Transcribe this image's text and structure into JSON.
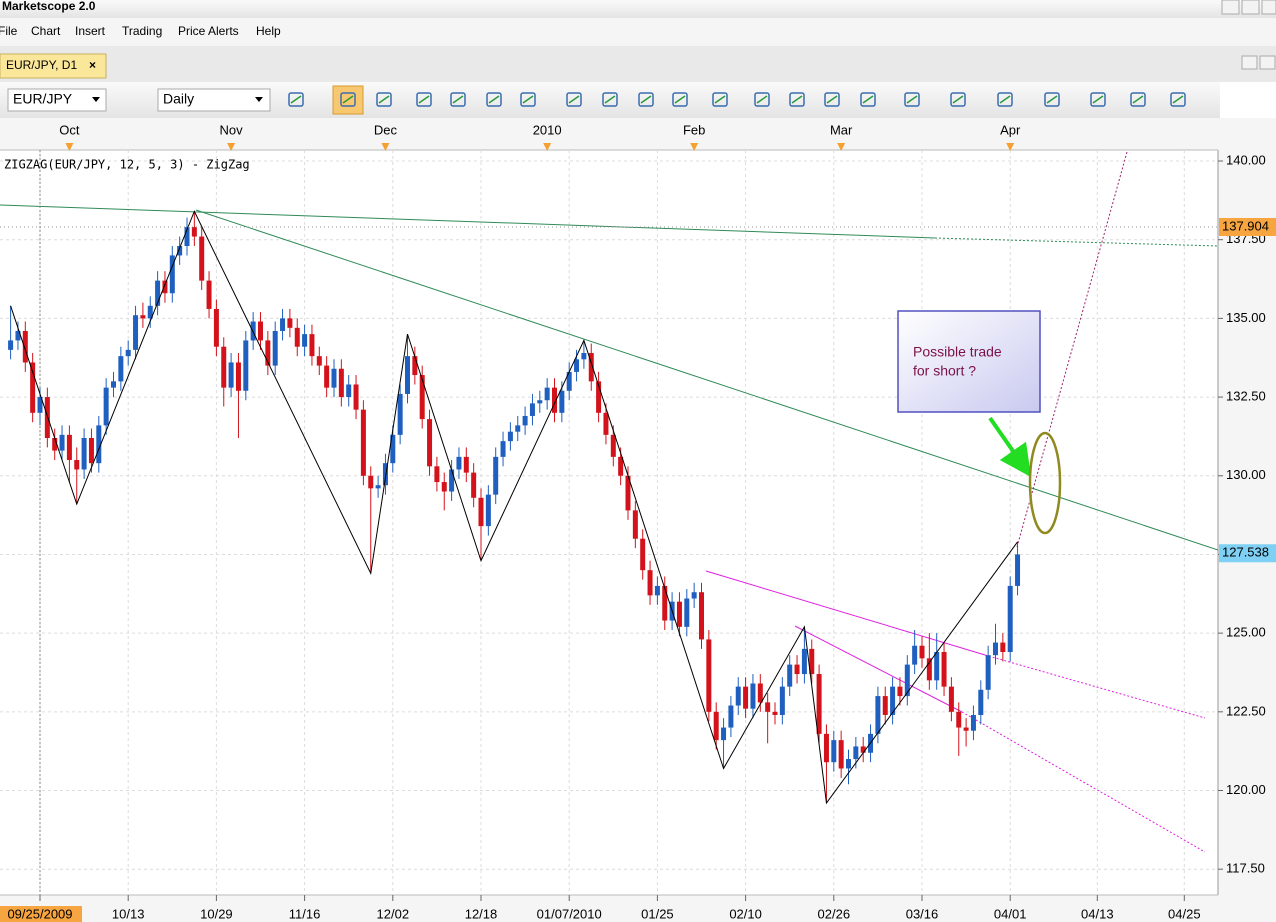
{
  "window": {
    "title": "Marketscope 2.0"
  },
  "menu": [
    "File",
    "Chart",
    "Insert",
    "Trading",
    "Price Alerts",
    "Help"
  ],
  "tab": {
    "label": "EUR/JPY, D1"
  },
  "toolbar": {
    "symbol": "EUR/JPY",
    "timeframe": "Daily"
  },
  "annotation": {
    "lines": [
      "Possible trade",
      "for short ?"
    ]
  },
  "chart_data": {
    "type": "candlestick",
    "title": "ZIGZAG(EUR/JPY, 12, 5, 3) - ZigZag",
    "x": [
      "2009-09-21",
      "2009-09-22",
      "2009-09-23",
      "2009-09-24",
      "2009-09-25",
      "2009-09-28",
      "2009-09-29",
      "2009-09-30",
      "2009-10-01",
      "2009-10-02",
      "2009-10-05",
      "2009-10-06",
      "2009-10-07",
      "2009-10-08",
      "2009-10-09",
      "2009-10-12",
      "2009-10-13",
      "2009-10-14",
      "2009-10-15",
      "2009-10-16",
      "2009-10-19",
      "2009-10-20",
      "2009-10-21",
      "2009-10-22",
      "2009-10-23",
      "2009-10-26",
      "2009-10-27",
      "2009-10-28",
      "2009-10-29",
      "2009-10-30",
      "2009-11-02",
      "2009-11-03",
      "2009-11-04",
      "2009-11-05",
      "2009-11-06",
      "2009-11-09",
      "2009-11-10",
      "2009-11-11",
      "2009-11-12",
      "2009-11-13",
      "2009-11-16",
      "2009-11-17",
      "2009-11-18",
      "2009-11-19",
      "2009-11-20",
      "2009-11-23",
      "2009-11-24",
      "2009-11-25",
      "2009-11-26",
      "2009-11-27",
      "2009-11-30",
      "2009-12-01",
      "2009-12-02",
      "2009-12-03",
      "2009-12-04",
      "2009-12-07",
      "2009-12-08",
      "2009-12-09",
      "2009-12-10",
      "2009-12-11",
      "2009-12-14",
      "2009-12-15",
      "2009-12-16",
      "2009-12-17",
      "2009-12-18",
      "2009-12-21",
      "2009-12-22",
      "2009-12-23",
      "2009-12-24",
      "2009-12-28",
      "2009-12-29",
      "2009-12-30",
      "2009-12-31",
      "2010-01-04",
      "2010-01-05",
      "2010-01-06",
      "2010-01-07",
      "2010-01-08",
      "2010-01-11",
      "2010-01-12",
      "2010-01-13",
      "2010-01-14",
      "2010-01-15",
      "2010-01-18",
      "2010-01-19",
      "2010-01-20",
      "2010-01-21",
      "2010-01-22",
      "2010-01-25",
      "2010-01-26",
      "2010-01-27",
      "2010-01-28",
      "2010-01-29",
      "2010-02-01",
      "2010-02-02",
      "2010-02-03",
      "2010-02-04",
      "2010-02-05",
      "2010-02-08",
      "2010-02-09",
      "2010-02-10",
      "2010-02-11",
      "2010-02-12",
      "2010-02-15",
      "2010-02-16",
      "2010-02-17",
      "2010-02-18",
      "2010-02-19",
      "2010-02-22",
      "2010-02-23",
      "2010-02-24",
      "2010-02-25",
      "2010-02-26",
      "2010-03-01",
      "2010-03-02",
      "2010-03-03",
      "2010-03-04",
      "2010-03-05",
      "2010-03-08",
      "2010-03-09",
      "2010-03-10",
      "2010-03-11",
      "2010-03-12",
      "2010-03-15",
      "2010-03-16",
      "2010-03-17",
      "2010-03-18",
      "2010-03-19",
      "2010-03-22",
      "2010-03-23",
      "2010-03-24",
      "2010-03-25",
      "2010-03-26",
      "2010-03-29",
      "2010-03-30",
      "2010-03-31",
      "2010-04-01",
      "2010-04-02"
    ],
    "open": [
      134.0,
      134.3,
      134.6,
      133.6,
      132.0,
      132.5,
      131.2,
      130.8,
      131.3,
      130.5,
      130.2,
      131.2,
      130.4,
      131.6,
      132.8,
      133.0,
      133.8,
      134.0,
      135.1,
      135.0,
      135.4,
      136.2,
      135.8,
      137.0,
      137.3,
      137.9,
      137.6,
      136.2,
      135.3,
      134.1,
      132.8,
      133.6,
      132.7,
      134.3,
      134.9,
      134.3,
      133.5,
      134.6,
      135.0,
      134.7,
      134.1,
      134.5,
      133.8,
      133.5,
      132.8,
      133.4,
      132.5,
      132.9,
      132.1,
      130.0,
      129.6,
      129.7,
      130.4,
      131.3,
      132.6,
      133.8,
      133.2,
      131.8,
      130.3,
      129.8,
      129.5,
      130.2,
      130.6,
      130.1,
      129.3,
      128.4,
      129.4,
      130.6,
      131.1,
      131.4,
      131.6,
      131.9,
      132.3,
      132.4,
      132.8,
      132.0,
      132.7,
      133.3,
      133.7,
      133.9,
      133.0,
      132.0,
      131.3,
      130.6,
      130.0,
      128.9,
      128.0,
      127.0,
      126.2,
      126.5,
      125.4,
      126.0,
      125.2,
      126.1,
      126.3,
      124.8,
      122.5,
      121.6,
      122.0,
      122.7,
      123.3,
      122.6,
      123.4,
      122.8,
      122.5,
      122.4,
      123.3,
      124.0,
      123.7,
      124.5,
      123.7,
      121.8,
      120.9,
      121.6,
      120.7,
      121.0,
      121.4,
      121.2,
      121.8,
      123.0,
      122.4,
      123.3,
      123.0,
      124.0,
      124.6,
      124.2,
      123.5,
      124.4,
      123.3,
      122.5,
      122.0,
      121.9,
      122.4,
      123.2,
      124.3,
      124.7,
      124.4,
      126.5
    ],
    "high": [
      135.4,
      134.9,
      134.9,
      133.9,
      132.8,
      132.8,
      131.5,
      131.6,
      131.6,
      130.9,
      131.5,
      131.5,
      131.9,
      133.1,
      133.3,
      134.1,
      134.3,
      135.4,
      135.5,
      135.7,
      136.5,
      136.5,
      137.3,
      137.6,
      138.2,
      138.4,
      137.9,
      136.5,
      135.6,
      134.4,
      133.9,
      133.9,
      134.6,
      135.2,
      135.2,
      134.6,
      134.9,
      135.3,
      135.3,
      135.0,
      134.8,
      134.8,
      134.1,
      133.8,
      133.7,
      133.7,
      133.2,
      133.2,
      132.4,
      130.3,
      130.0,
      130.7,
      131.6,
      132.9,
      134.5,
      134.1,
      133.5,
      132.1,
      130.6,
      130.1,
      130.5,
      130.9,
      130.9,
      130.4,
      129.6,
      129.7,
      130.9,
      131.4,
      131.7,
      131.9,
      132.2,
      132.6,
      132.7,
      133.1,
      133.1,
      133.0,
      133.6,
      134.0,
      134.3,
      134.2,
      133.3,
      132.3,
      131.6,
      130.9,
      130.3,
      129.2,
      128.3,
      127.3,
      126.8,
      126.8,
      126.3,
      126.3,
      126.4,
      126.6,
      126.6,
      125.1,
      122.8,
      122.3,
      123.0,
      123.6,
      123.6,
      123.7,
      123.7,
      123.1,
      122.8,
      123.6,
      124.3,
      124.3,
      125.2,
      124.8,
      124.0,
      122.1,
      121.9,
      121.9,
      121.3,
      121.7,
      121.7,
      122.1,
      123.3,
      123.3,
      123.6,
      123.6,
      124.3,
      125.1,
      124.9,
      125.0,
      125.0,
      124.7,
      123.6,
      122.8,
      122.3,
      122.7,
      123.5,
      124.6,
      125.3,
      125.0,
      126.8,
      127.9
    ],
    "low": [
      133.7,
      134.0,
      133.3,
      131.7,
      131.6,
      130.9,
      130.5,
      130.5,
      129.8,
      129.1,
      129.9,
      130.1,
      130.1,
      131.3,
      132.5,
      132.7,
      133.5,
      133.7,
      134.7,
      134.7,
      135.1,
      135.5,
      135.5,
      136.7,
      137.0,
      137.3,
      135.9,
      135.0,
      133.8,
      132.2,
      132.5,
      131.2,
      132.4,
      134.0,
      134.0,
      133.2,
      133.2,
      134.3,
      134.4,
      133.8,
      133.8,
      133.5,
      133.2,
      132.5,
      132.5,
      132.2,
      132.2,
      131.8,
      129.7,
      126.9,
      129.3,
      129.4,
      130.1,
      131.0,
      132.3,
      132.9,
      131.5,
      130.0,
      129.5,
      128.9,
      129.2,
      129.9,
      129.8,
      129.0,
      127.3,
      128.1,
      129.1,
      130.3,
      130.8,
      131.1,
      131.3,
      131.6,
      132.0,
      132.1,
      131.7,
      131.7,
      132.4,
      133.0,
      133.4,
      132.7,
      131.7,
      131.0,
      130.3,
      129.7,
      128.6,
      127.7,
      126.7,
      125.9,
      125.9,
      125.1,
      125.1,
      124.9,
      124.9,
      125.8,
      124.5,
      122.2,
      121.3,
      120.7,
      121.7,
      122.4,
      122.3,
      122.3,
      122.5,
      121.5,
      122.1,
      122.1,
      123.0,
      123.4,
      123.4,
      123.4,
      121.5,
      119.6,
      120.6,
      120.4,
      120.2,
      120.7,
      120.9,
      120.9,
      121.5,
      122.1,
      122.1,
      122.7,
      122.7,
      123.7,
      123.9,
      123.2,
      123.2,
      123.0,
      122.2,
      121.1,
      121.4,
      121.6,
      122.1,
      122.9,
      124.0,
      124.1,
      124.1,
      126.2
    ],
    "close": [
      134.3,
      134.6,
      133.6,
      132.0,
      132.5,
      131.2,
      130.8,
      131.3,
      130.5,
      130.2,
      131.2,
      130.4,
      131.6,
      132.8,
      133.0,
      133.8,
      134.0,
      135.1,
      135.0,
      135.4,
      136.2,
      135.8,
      137.0,
      137.3,
      137.9,
      137.6,
      136.2,
      135.3,
      134.1,
      132.8,
      133.6,
      132.7,
      134.3,
      134.9,
      134.3,
      133.5,
      134.6,
      135.0,
      134.7,
      134.1,
      134.5,
      133.8,
      133.5,
      132.8,
      133.4,
      132.5,
      132.9,
      132.1,
      130.0,
      129.6,
      129.7,
      130.4,
      131.3,
      132.6,
      133.8,
      133.2,
      131.8,
      130.3,
      129.8,
      129.5,
      130.2,
      130.6,
      130.1,
      129.3,
      128.4,
      129.4,
      130.6,
      131.1,
      131.4,
      131.6,
      131.9,
      132.3,
      132.4,
      132.8,
      132.0,
      132.7,
      133.3,
      133.7,
      133.9,
      133.0,
      132.0,
      131.3,
      130.6,
      130.0,
      128.9,
      128.0,
      127.0,
      126.2,
      126.5,
      125.4,
      126.0,
      125.2,
      126.1,
      126.3,
      124.8,
      122.5,
      121.6,
      122.0,
      122.7,
      123.3,
      122.6,
      123.4,
      122.8,
      122.5,
      122.4,
      123.3,
      124.0,
      123.7,
      124.5,
      123.7,
      121.8,
      120.9,
      121.6,
      120.7,
      121.0,
      121.4,
      121.2,
      121.8,
      123.0,
      122.4,
      123.3,
      123.0,
      124.0,
      124.6,
      124.2,
      123.5,
      124.4,
      123.3,
      122.5,
      122.0,
      121.9,
      122.4,
      123.2,
      124.3,
      124.7,
      124.4,
      126.5,
      127.5
    ],
    "up_color": "#1f5fbf",
    "down_color": "#d3121b",
    "zigzag": {
      "color": "#000000",
      "x": [
        "2009-09-21",
        "2009-10-02",
        "2009-10-26",
        "2009-11-27",
        "2009-12-04",
        "2009-12-18",
        "2010-01-11",
        "2010-02-05",
        "2010-02-22",
        "2010-02-25",
        "2010-04-02"
      ],
      "values": [
        135.4,
        129.1,
        138.4,
        126.9,
        134.5,
        127.3,
        134.3,
        120.7,
        125.2,
        119.6,
        127.9
      ]
    },
    "ylim": [
      116.68,
      140.35
    ],
    "yticks": [
      {
        "value": 117.5,
        "label": "117.50"
      },
      {
        "value": 120,
        "label": "120.00"
      },
      {
        "value": 122.5,
        "label": "122.50"
      },
      {
        "value": 125,
        "label": "125.00"
      },
      {
        "value": 127.5,
        "label": "127.50"
      },
      {
        "value": 130,
        "label": "130.00"
      },
      {
        "value": 132.5,
        "label": "132.50"
      },
      {
        "value": 135,
        "label": "135.00"
      },
      {
        "value": 137.5,
        "label": "137.50"
      },
      {
        "value": 140,
        "label": "140.00"
      }
    ],
    "xticks_top": [
      {
        "value": "2009-10-01",
        "label": "Oct"
      },
      {
        "value": "2009-11-02",
        "label": "Nov"
      },
      {
        "value": "2009-12-01",
        "label": "Dec"
      },
      {
        "value": "2010-01-04",
        "label": "2010"
      },
      {
        "value": "2010-02-01",
        "label": "Feb"
      },
      {
        "value": "2010-03-01",
        "label": "Mar"
      },
      {
        "value": "2010-04-01",
        "label": "Apr"
      }
    ],
    "xticks": [
      {
        "value": "2009-09-25",
        "label": "09/25/2009"
      },
      {
        "value": "2009-10-13",
        "label": "10/13"
      },
      {
        "value": "2009-10-29",
        "label": "10/29"
      },
      {
        "value": "2009-11-16",
        "label": "11/16"
      },
      {
        "value": "2009-12-02",
        "label": "12/02"
      },
      {
        "value": "2009-12-18",
        "label": "12/18"
      },
      {
        "value": "2010-01-07",
        "label": "01/07/2010"
      },
      {
        "value": "2010-01-25",
        "label": "01/25"
      },
      {
        "value": "2010-02-10",
        "label": "02/10"
      },
      {
        "value": "2010-02-26",
        "label": "02/26"
      },
      {
        "value": "2010-03-16",
        "label": "03/16"
      },
      {
        "value": "2010-04-01",
        "label": "04/01"
      },
      {
        "value": "2010-04-13",
        "label": "04/13"
      },
      {
        "value": "2010-04-25",
        "label": "04/25"
      }
    ],
    "price_markers": [
      {
        "value": 137.904,
        "color": "#f7a540"
      },
      {
        "value": 127.538,
        "color": "#7fd0f5"
      }
    ],
    "grid": true
  }
}
